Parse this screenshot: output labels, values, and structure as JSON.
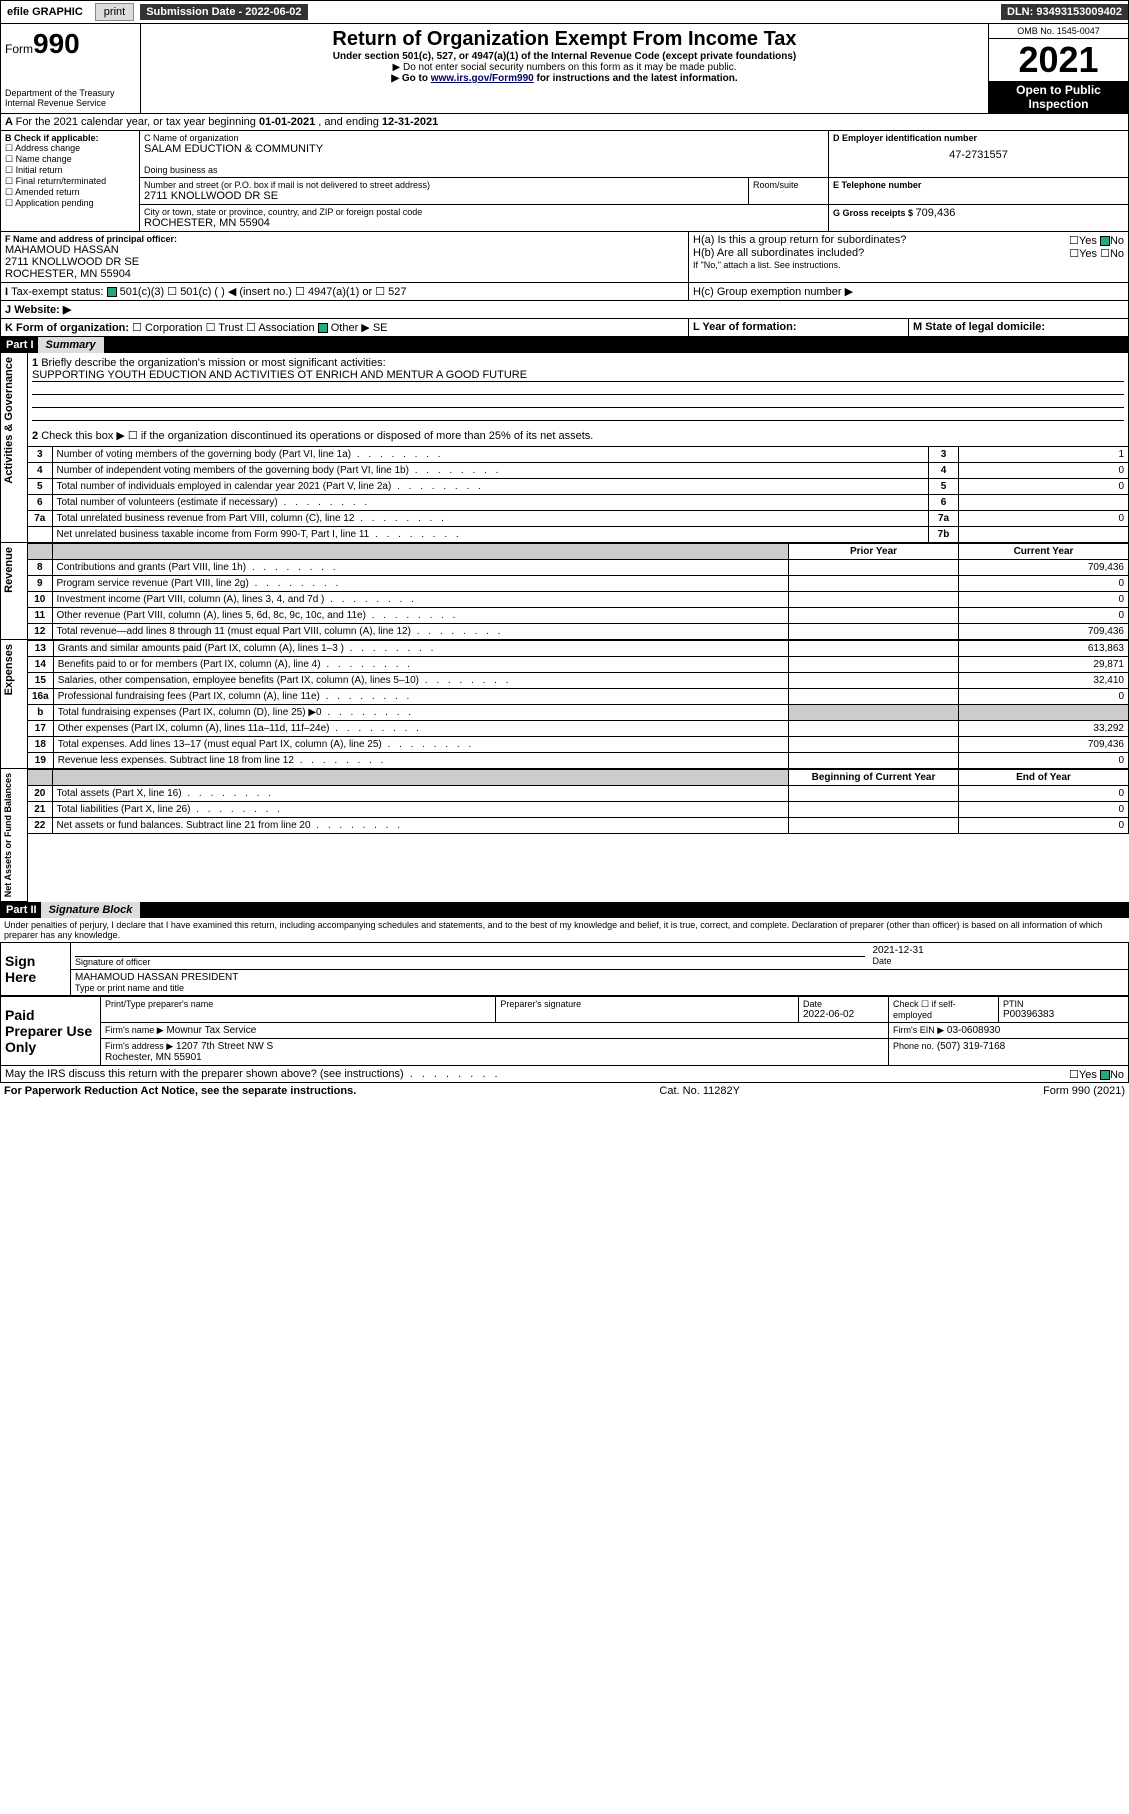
{
  "topbar": {
    "efile": "efile GRAPHIC",
    "print": "print",
    "sub_label": "Submission Date - 2022-06-02",
    "dln": "DLN: 93493153009402"
  },
  "header": {
    "form_prefix": "Form",
    "form_no": "990",
    "dept": "Department of the Treasury",
    "irs": "Internal Revenue Service",
    "title": "Return of Organization Exempt From Income Tax",
    "sub1": "Under section 501(c), 527, or 4947(a)(1) of the Internal Revenue Code (except private foundations)",
    "sub2": "▶ Do not enter social security numbers on this form as it may be made public.",
    "sub3_pre": "▶ Go to ",
    "sub3_link": "www.irs.gov/Form990",
    "sub3_post": " for instructions and the latest information.",
    "omb": "OMB No. 1545-0047",
    "year": "2021",
    "open": "Open to Public Inspection"
  },
  "periodA": {
    "text_pre": "For the 2021 calendar year, or tax year beginning ",
    "begin": "01-01-2021",
    "mid": " , and ending ",
    "end": "12-31-2021"
  },
  "boxB": {
    "label": "B Check if applicable:",
    "items": [
      "Address change",
      "Name change",
      "Initial return",
      "Final return/terminated",
      "Amended return",
      "Application pending"
    ]
  },
  "boxC": {
    "name_label": "C Name of organization",
    "name": "SALAM EDUCTION & COMMUNITY",
    "dba_label": "Doing business as",
    "addr_label": "Number and street (or P.O. box if mail is not delivered to street address)",
    "addr": "2711 KNOLLWOOD DR SE",
    "room_label": "Room/suite",
    "city_label": "City or town, state or province, country, and ZIP or foreign postal code",
    "city": "ROCHESTER, MN  55904"
  },
  "boxD": {
    "label": "D Employer identification number",
    "val": "47-2731557"
  },
  "boxE": {
    "label": "E Telephone number"
  },
  "boxG": {
    "label": "G Gross receipts $ ",
    "val": "709,436"
  },
  "boxF": {
    "label": "F Name and address of principal officer:",
    "name": "MAHAMOUD HASSAN",
    "addr": "2711 KNOLLWOOD DR SE",
    "city": "ROCHESTER, MN  55904"
  },
  "boxH": {
    "a": "H(a)  Is this a group return for subordinates?",
    "b": "H(b)  Are all subordinates included?",
    "note": "If \"No,\" attach a list. See instructions.",
    "c": "H(c)  Group exemption number ▶",
    "yes": "Yes",
    "no": "No"
  },
  "boxI": {
    "label": "Tax-exempt status:",
    "o1": "501(c)(3)",
    "o2": "501(c) (  ) ◀ (insert no.)",
    "o3": "4947(a)(1) or",
    "o4": "527"
  },
  "boxJ": {
    "label": "Website: ▶"
  },
  "boxK": {
    "label": "K Form of organization:",
    "o1": "Corporation",
    "o2": "Trust",
    "o3": "Association",
    "o4": "Other ▶",
    "o4v": "SE"
  },
  "boxL": {
    "label": "L Year of formation:"
  },
  "boxM": {
    "label": "M State of legal domicile:"
  },
  "part1": {
    "hdr": "Part I",
    "title": "Summary",
    "q1": "Briefly describe the organization's mission or most significant activities:",
    "q1v": "SUPPORTING YOUTH EDUCTION AND ACTIVITIES OT ENRICH AND MENTUR A GOOD FUTURE",
    "q2": "Check this box ▶ ☐  if the organization discontinued its operations or disposed of more than 25% of its net assets.",
    "rows_gov": [
      {
        "n": "3",
        "t": "Number of voting members of the governing body (Part VI, line 1a)",
        "rn": "3",
        "v": "1"
      },
      {
        "n": "4",
        "t": "Number of independent voting members of the governing body (Part VI, line 1b)",
        "rn": "4",
        "v": "0"
      },
      {
        "n": "5",
        "t": "Total number of individuals employed in calendar year 2021 (Part V, line 2a)",
        "rn": "5",
        "v": "0"
      },
      {
        "n": "6",
        "t": "Total number of volunteers (estimate if necessary)",
        "rn": "6",
        "v": ""
      },
      {
        "n": "7a",
        "t": "Total unrelated business revenue from Part VIII, column (C), line 12",
        "rn": "7a",
        "v": "0"
      },
      {
        "n": "",
        "t": "Net unrelated business taxable income from Form 990-T, Part I, line 11",
        "rn": "7b",
        "v": ""
      }
    ],
    "col_prior": "Prior Year",
    "col_curr": "Current Year",
    "rows_rev": [
      {
        "n": "8",
        "t": "Contributions and grants (Part VIII, line 1h)",
        "p": "",
        "c": "709,436"
      },
      {
        "n": "9",
        "t": "Program service revenue (Part VIII, line 2g)",
        "p": "",
        "c": "0"
      },
      {
        "n": "10",
        "t": "Investment income (Part VIII, column (A), lines 3, 4, and 7d )",
        "p": "",
        "c": "0"
      },
      {
        "n": "11",
        "t": "Other revenue (Part VIII, column (A), lines 5, 6d, 8c, 9c, 10c, and 11e)",
        "p": "",
        "c": "0"
      },
      {
        "n": "12",
        "t": "Total revenue—add lines 8 through 11 (must equal Part VIII, column (A), line 12)",
        "p": "",
        "c": "709,436"
      }
    ],
    "rows_exp": [
      {
        "n": "13",
        "t": "Grants and similar amounts paid (Part IX, column (A), lines 1–3 )",
        "p": "",
        "c": "613,863"
      },
      {
        "n": "14",
        "t": "Benefits paid to or for members (Part IX, column (A), line 4)",
        "p": "",
        "c": "29,871"
      },
      {
        "n": "15",
        "t": "Salaries, other compensation, employee benefits (Part IX, column (A), lines 5–10)",
        "p": "",
        "c": "32,410"
      },
      {
        "n": "16a",
        "t": "Professional fundraising fees (Part IX, column (A), line 11e)",
        "p": "",
        "c": "0"
      },
      {
        "n": "b",
        "t": "Total fundraising expenses (Part IX, column (D), line 25) ▶0",
        "p": "grey",
        "c": "grey"
      },
      {
        "n": "17",
        "t": "Other expenses (Part IX, column (A), lines 11a–11d, 11f–24e)",
        "p": "",
        "c": "33,292"
      },
      {
        "n": "18",
        "t": "Total expenses. Add lines 13–17 (must equal Part IX, column (A), line 25)",
        "p": "",
        "c": "709,436"
      },
      {
        "n": "19",
        "t": "Revenue less expenses. Subtract line 18 from line 12",
        "p": "",
        "c": "0"
      }
    ],
    "col_beg": "Beginning of Current Year",
    "col_end": "End of Year",
    "rows_net": [
      {
        "n": "20",
        "t": "Total assets (Part X, line 16)",
        "p": "",
        "c": "0"
      },
      {
        "n": "21",
        "t": "Total liabilities (Part X, line 26)",
        "p": "",
        "c": "0"
      },
      {
        "n": "22",
        "t": "Net assets or fund balances. Subtract line 21 from line 20",
        "p": "",
        "c": "0"
      }
    ],
    "side_gov": "Activities & Governance",
    "side_rev": "Revenue",
    "side_exp": "Expenses",
    "side_net": "Net Assets or Fund Balances"
  },
  "part2": {
    "hdr": "Part II",
    "title": "Signature Block",
    "decl": "Under penalties of perjury, I declare that I have examined this return, including accompanying schedules and statements, and to the best of my knowledge and belief, it is true, correct, and complete. Declaration of preparer (other than officer) is based on all information of which preparer has any knowledge.",
    "sign_here": "Sign Here",
    "sig_label": "Signature of officer",
    "date_label": "Date",
    "date": "2021-12-31",
    "name": "MAHAMOUD HASSAN  PRESIDENT",
    "name_label": "Type or print name and title",
    "paid": "Paid Preparer Use Only",
    "pp_name_label": "Print/Type preparer's name",
    "pp_sig_label": "Preparer's signature",
    "pp_date_label": "Date",
    "pp_date": "2022-06-02",
    "pp_check": "Check ☐ if self-employed",
    "ptin_label": "PTIN",
    "ptin": "P00396383",
    "firm_name_label": "Firm's name   ▶",
    "firm_name": "Mownur Tax Service",
    "ein_label": "Firm's EIN ▶",
    "ein": "03-0608930",
    "firm_addr_label": "Firm's address ▶",
    "firm_addr": "1207 7th Street NW S",
    "firm_city": "Rochester, MN  55901",
    "phone_label": "Phone no.",
    "phone": "(507) 319-7168",
    "discuss": "May the IRS discuss this return with the preparer shown above? (see instructions)"
  },
  "footer": {
    "pra": "For Paperwork Reduction Act Notice, see the separate instructions.",
    "cat": "Cat. No. 11282Y",
    "form": "Form 990 (2021)"
  },
  "colors": {
    "link": "#0000aa",
    "dark": "#333333",
    "grey": "#cccccc",
    "green_check": "#22aa77"
  }
}
